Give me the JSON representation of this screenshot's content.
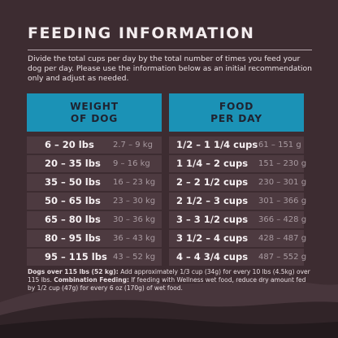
{
  "title": "FEEDING INFORMATION",
  "intro": "Divide the total cups per day by the total number of times you feed your dog per day. Please use the information below as an initial recommendation only and adjust as needed.",
  "table": {
    "header_left_line1": "WEIGHT",
    "header_left_line2": "OF DOG",
    "header_right_line1": "FOOD",
    "header_right_line2": "PER DAY",
    "rows": [
      {
        "lbs": "6 – 20 lbs",
        "kg": "2.7 – 9 kg",
        "cups": "1/2 – 1 1/4 cups",
        "grams": "61 – 151 g"
      },
      {
        "lbs": "20 – 35 lbs",
        "kg": "9 – 16 kg",
        "cups": "1 1/4 – 2 cups",
        "grams": "151 – 230 g"
      },
      {
        "lbs": "35 – 50 lbs",
        "kg": "16 – 23 kg",
        "cups": "2 – 2 1/2 cups",
        "grams": "230 – 301 g"
      },
      {
        "lbs": "50 – 65 lbs",
        "kg": "23 – 30 kg",
        "cups": "2 1/2 – 3 cups",
        "grams": "301 – 366 g"
      },
      {
        "lbs": "65 – 80 lbs",
        "kg": "30 – 36 kg",
        "cups": "3 – 3 1/2 cups",
        "grams": "366 – 428 g"
      },
      {
        "lbs": "80 – 95 lbs",
        "kg": "36 – 43 kg",
        "cups": "3 1/2 – 4 cups",
        "grams": "428 – 487 g"
      },
      {
        "lbs": "95 – 115 lbs",
        "kg": "43 – 52 kg",
        "cups": "4 – 4 3/4 cups",
        "grams": "487 – 552 g"
      }
    ]
  },
  "footnote": {
    "bold1": "Dogs over 115 lbs (52 kg):",
    "text1": " Add approximately 1/3 cup (34g) for every 10 lbs (4.5kg) over 115 lbs.",
    "bold2": "Combination Feeding:",
    "text2": " If feeding with Wellness wet food, reduce dry amount fed by 1/2 cup (47g) for every 6 oz (170g) of wet food."
  },
  "colors": {
    "background": "#3d2c31",
    "header_blue": "#1b92b6",
    "row_bg": "#4d3a40"
  }
}
